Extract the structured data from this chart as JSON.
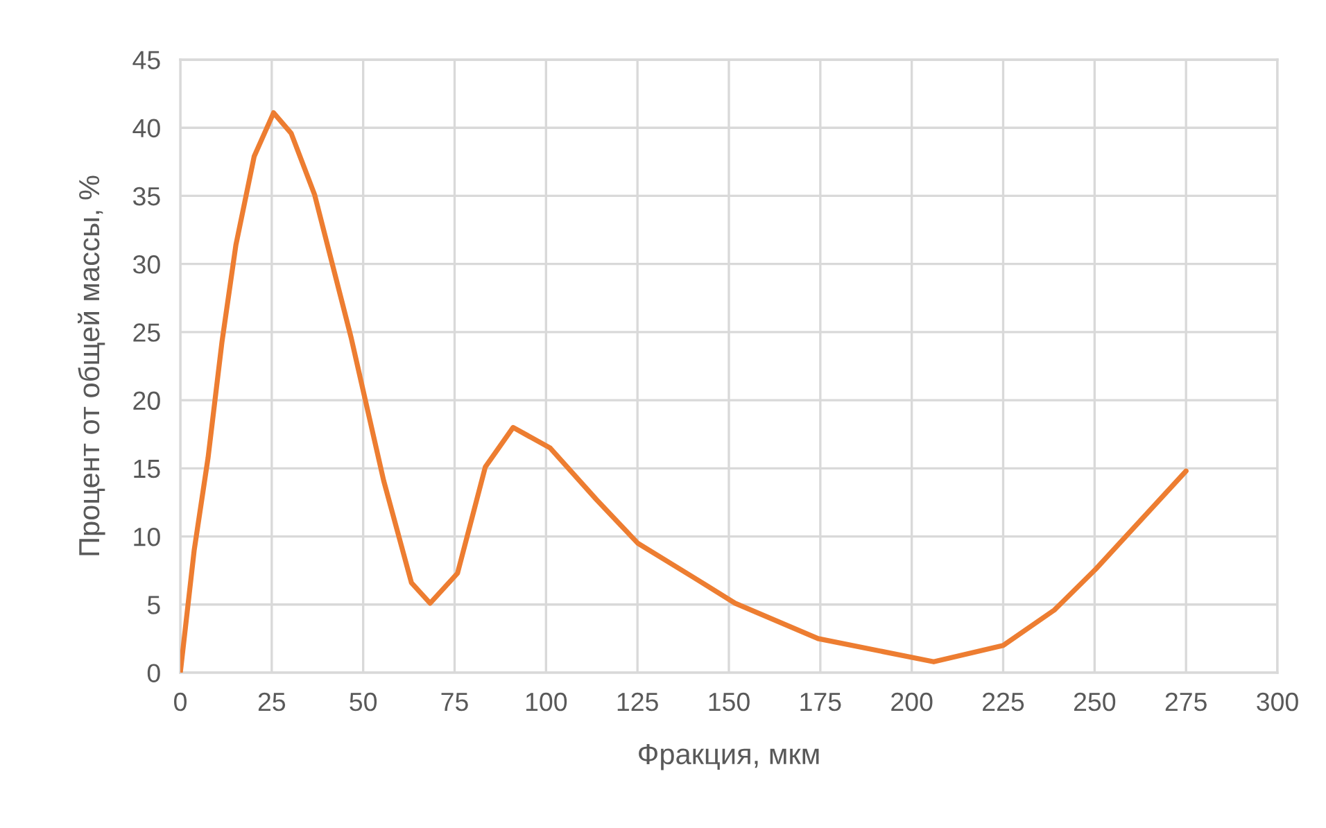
{
  "chart_data": {
    "type": "line",
    "xlabel": "Фракция, мкм",
    "ylabel": "Процент от общей массы, %",
    "x": [
      0,
      3.8,
      7.6,
      11.4,
      15.2,
      20.2,
      25.5,
      30.3,
      36.7,
      46.7,
      55.6,
      63.2,
      68.3,
      75.8,
      83.4,
      91,
      101.1,
      113.8,
      125.1,
      140.3,
      151.7,
      174.4,
      206,
      225,
      239,
      250.3,
      275
    ],
    "series": [
      {
        "color": "#ed7d31",
        "values": [
          0,
          9.0,
          15.8,
          24.3,
          31.4,
          37.9,
          41.1,
          39.6,
          35.1,
          24.6,
          14.1,
          6.6,
          5.1,
          7.3,
          15.1,
          18.0,
          16.5,
          12.7,
          9.5,
          7.0,
          5.1,
          2.5,
          0.8,
          2.0,
          4.6,
          7.6,
          14.8
        ]
      }
    ],
    "xlim": [
      0,
      300
    ],
    "xticks": [
      0,
      25,
      50,
      75,
      100,
      125,
      150,
      175,
      200,
      225,
      250,
      275,
      300
    ],
    "ylim": [
      0,
      45
    ],
    "yticks": [
      0,
      5,
      10,
      15,
      20,
      25,
      30,
      35,
      40,
      45
    ],
    "grid": true,
    "marker": "none",
    "line_style": "solid"
  }
}
